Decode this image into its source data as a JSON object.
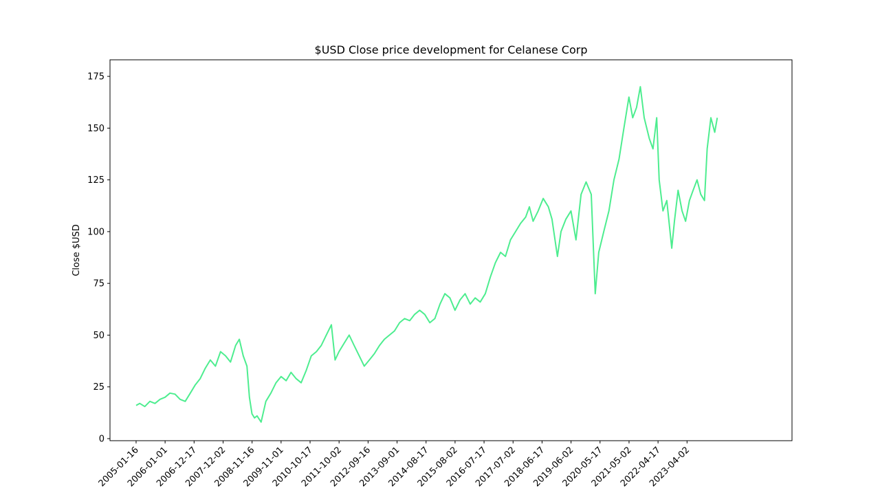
{
  "chart_data": {
    "type": "line",
    "title": "$USD Close price development for Celanese Corp",
    "xlabel": "",
    "ylabel": "Close $USD",
    "ylim": [
      -1,
      183
    ],
    "yticks": [
      0,
      25,
      50,
      75,
      100,
      125,
      150,
      175
    ],
    "xticks": [
      "2005-01-16",
      "2006-01-01",
      "2006-12-17",
      "2007-12-02",
      "2008-11-16",
      "2009-11-01",
      "2010-10-17",
      "2011-10-02",
      "2012-09-16",
      "2013-09-01",
      "2014-08-17",
      "2015-08-02",
      "2016-07-17",
      "2017-07-02",
      "2018-06-17",
      "2019-06-02",
      "2020-05-17",
      "2021-05-02",
      "2022-04-17",
      "2023-04-02"
    ],
    "xlim": [
      "2004-03-07",
      "2026-09-20"
    ],
    "line_color": "#4ded8f",
    "grid": false,
    "series": [
      {
        "x": [
          "2005-01-16",
          "2005-03-01",
          "2005-05-01",
          "2005-07-01",
          "2005-09-01",
          "2005-11-01",
          "2006-01-01",
          "2006-03-01",
          "2006-05-01",
          "2006-07-01",
          "2006-09-01",
          "2006-11-01",
          "2007-01-01",
          "2007-03-01",
          "2007-05-01",
          "2007-07-01",
          "2007-09-01",
          "2007-11-01",
          "2008-01-01",
          "2008-03-01",
          "2008-05-01",
          "2008-06-15",
          "2008-08-01",
          "2008-09-15",
          "2008-10-15",
          "2008-11-15",
          "2008-12-15",
          "2009-01-15",
          "2009-03-05",
          "2009-05-01",
          "2009-07-01",
          "2009-09-01",
          "2009-11-01",
          "2010-01-01",
          "2010-03-01",
          "2010-05-01",
          "2010-07-01",
          "2010-09-01",
          "2010-11-01",
          "2011-01-01",
          "2011-03-01",
          "2011-05-01",
          "2011-07-01",
          "2011-08-15",
          "2011-10-01",
          "2011-12-01",
          "2012-02-01",
          "2012-04-01",
          "2012-06-01",
          "2012-08-01",
          "2012-10-01",
          "2012-12-01",
          "2013-02-01",
          "2013-04-01",
          "2013-06-01",
          "2013-08-01",
          "2013-10-01",
          "2013-12-01",
          "2014-02-01",
          "2014-04-01",
          "2014-06-01",
          "2014-08-01",
          "2014-10-01",
          "2014-12-01",
          "2015-02-01",
          "2015-04-01",
          "2015-06-01",
          "2015-08-01",
          "2015-10-01",
          "2015-12-01",
          "2016-02-01",
          "2016-04-01",
          "2016-06-01",
          "2016-08-01",
          "2016-10-01",
          "2016-12-01",
          "2017-02-01",
          "2017-04-01",
          "2017-06-01",
          "2017-08-01",
          "2017-10-01",
          "2017-12-01",
          "2018-01-15",
          "2018-03-01",
          "2018-05-01",
          "2018-07-01",
          "2018-09-01",
          "2018-10-15",
          "2018-12-20",
          "2019-02-01",
          "2019-04-01",
          "2019-06-01",
          "2019-08-01",
          "2019-10-01",
          "2019-12-01",
          "2020-02-01",
          "2020-03-20",
          "2020-05-01",
          "2020-07-01",
          "2020-09-01",
          "2020-11-01",
          "2021-01-01",
          "2021-03-01",
          "2021-05-01",
          "2021-06-15",
          "2021-08-01",
          "2021-09-15",
          "2021-11-01",
          "2022-01-01",
          "2022-02-15",
          "2022-04-01",
          "2022-05-01",
          "2022-06-15",
          "2022-08-01",
          "2022-09-30",
          "2022-11-01",
          "2022-12-15",
          "2023-02-01",
          "2023-03-15",
          "2023-05-01",
          "2023-06-15",
          "2023-08-01",
          "2023-09-15",
          "2023-10-30",
          "2023-12-01",
          "2024-01-15",
          "2024-03-01",
          "2024-04-01"
        ],
        "y": [
          16,
          17,
          15.5,
          18,
          17,
          19,
          20,
          22,
          21.5,
          19,
          18,
          22,
          26,
          29,
          34,
          38,
          35,
          42,
          40,
          37,
          45,
          48,
          40,
          35,
          20,
          12,
          10,
          11,
          8,
          18,
          22,
          27,
          30,
          28,
          32,
          29,
          27,
          33,
          40,
          42,
          45,
          50,
          55,
          38,
          42,
          46,
          50,
          45,
          40,
          35,
          38,
          41,
          45,
          48,
          50,
          52,
          56,
          58,
          57,
          60,
          62,
          60,
          56,
          58,
          65,
          70,
          68,
          62,
          67,
          70,
          65,
          68,
          66,
          70,
          78,
          85,
          90,
          88,
          96,
          100,
          104,
          107,
          112,
          105,
          110,
          116,
          112,
          106,
          88,
          100,
          106,
          110,
          96,
          118,
          124,
          118,
          70,
          90,
          100,
          110,
          125,
          135,
          150,
          165,
          155,
          160,
          170,
          155,
          145,
          140,
          155,
          125,
          110,
          115,
          92,
          105,
          120,
          110,
          105,
          115,
          120,
          125,
          118,
          115,
          140,
          155,
          148,
          155
        ]
      }
    ]
  }
}
